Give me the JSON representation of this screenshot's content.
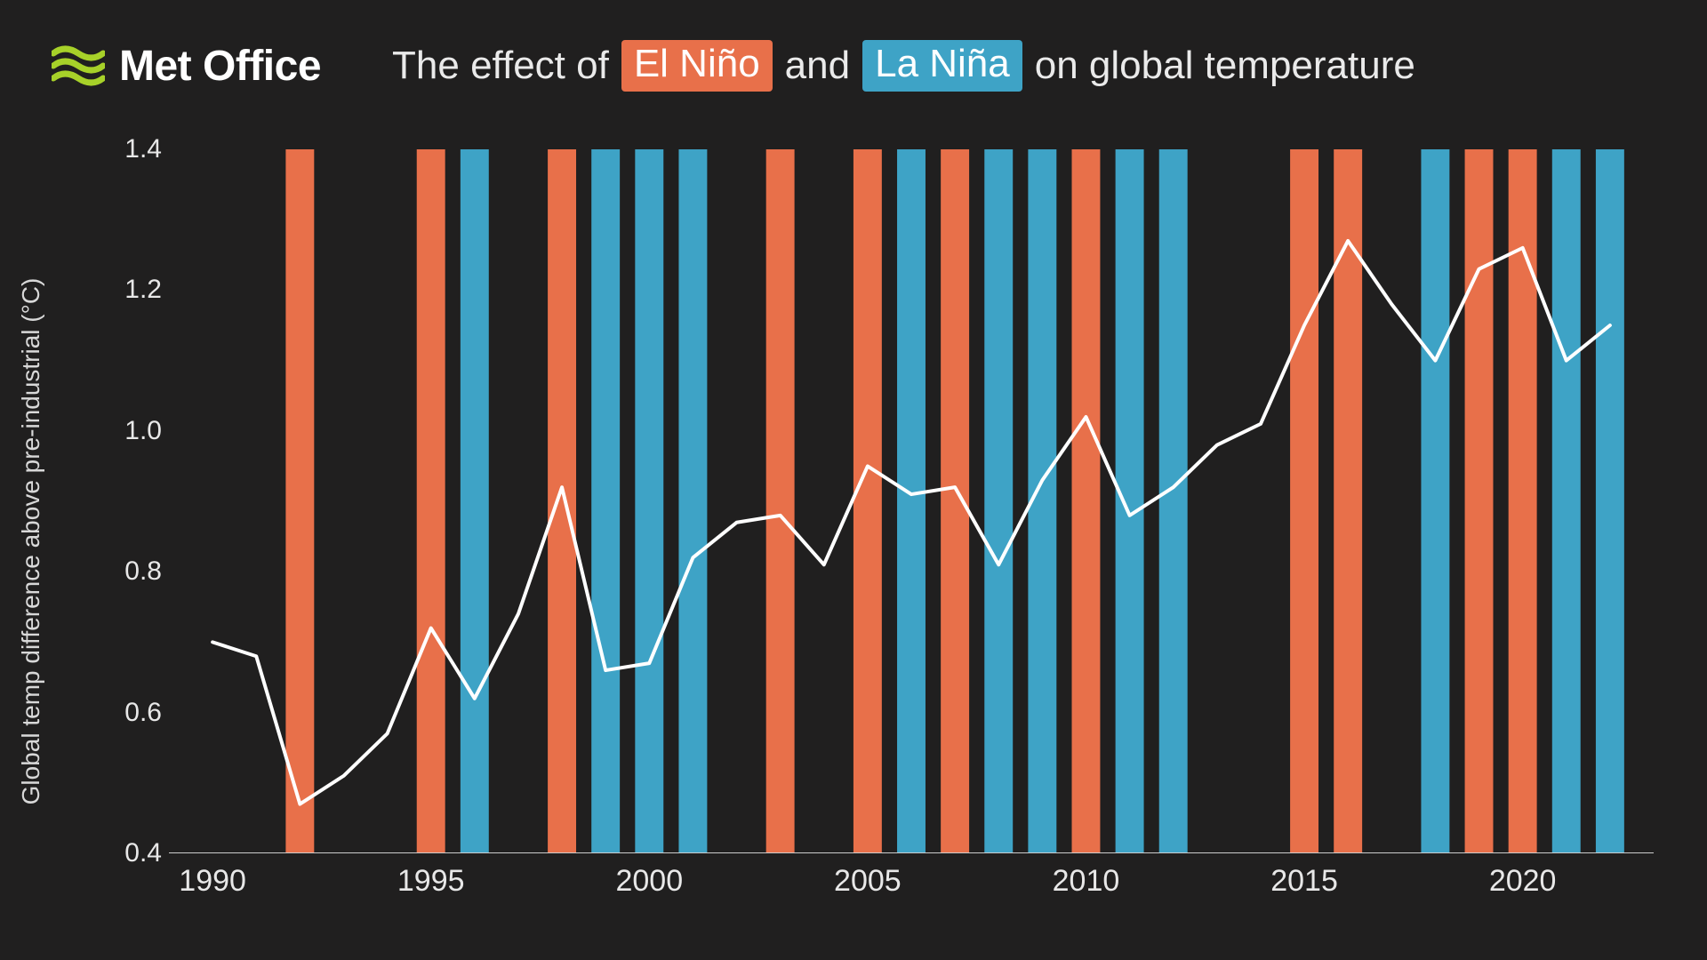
{
  "brand": {
    "logo_text": "Met Office",
    "logo_wave_color": "#a7d129"
  },
  "title": {
    "prefix": "The effect of",
    "elnino_label": "El Niño",
    "mid": "and",
    "lanina_label": "La Niña",
    "suffix": "on global temperature"
  },
  "colors": {
    "background": "#201f1f",
    "elnino": "#e8704a",
    "lanina": "#3ea3c6",
    "line": "#ffffff",
    "axis": "#cccccc",
    "text": "#e8e8e8"
  },
  "chart": {
    "type": "line+bar",
    "x_domain": [
      1989,
      2023
    ],
    "y_domain": [
      0.4,
      1.4
    ],
    "y_label": "Global temp difference above pre-industrial (°C)",
    "y_ticks": [
      0.4,
      0.6,
      0.8,
      1.0,
      1.2,
      1.4
    ],
    "x_ticks": [
      1990,
      1995,
      2000,
      2005,
      2010,
      2015,
      2020
    ],
    "line_width": 4,
    "bar_width_ratio": 0.65,
    "tick_fontsize": 30,
    "label_fontsize": 28,
    "bars": [
      {
        "year": 1992,
        "type": "elnino"
      },
      {
        "year": 1995,
        "type": "elnino"
      },
      {
        "year": 1996,
        "type": "lanina"
      },
      {
        "year": 1998,
        "type": "elnino"
      },
      {
        "year": 1999,
        "type": "lanina"
      },
      {
        "year": 2000,
        "type": "lanina"
      },
      {
        "year": 2001,
        "type": "lanina"
      },
      {
        "year": 2003,
        "type": "elnino"
      },
      {
        "year": 2005,
        "type": "elnino"
      },
      {
        "year": 2006,
        "type": "lanina"
      },
      {
        "year": 2007,
        "type": "elnino"
      },
      {
        "year": 2008,
        "type": "lanina"
      },
      {
        "year": 2009,
        "type": "lanina"
      },
      {
        "year": 2010,
        "type": "elnino"
      },
      {
        "year": 2011,
        "type": "lanina"
      },
      {
        "year": 2012,
        "type": "lanina"
      },
      {
        "year": 2015,
        "type": "elnino"
      },
      {
        "year": 2016,
        "type": "elnino"
      },
      {
        "year": 2018,
        "type": "lanina"
      },
      {
        "year": 2019,
        "type": "elnino"
      },
      {
        "year": 2020,
        "type": "elnino"
      },
      {
        "year": 2021,
        "type": "lanina"
      },
      {
        "year": 2022,
        "type": "lanina"
      }
    ],
    "line_series": [
      {
        "year": 1990,
        "value": 0.7
      },
      {
        "year": 1991,
        "value": 0.68
      },
      {
        "year": 1992,
        "value": 0.47
      },
      {
        "year": 1993,
        "value": 0.51
      },
      {
        "year": 1994,
        "value": 0.57
      },
      {
        "year": 1995,
        "value": 0.72
      },
      {
        "year": 1996,
        "value": 0.62
      },
      {
        "year": 1997,
        "value": 0.74
      },
      {
        "year": 1998,
        "value": 0.92
      },
      {
        "year": 1999,
        "value": 0.66
      },
      {
        "year": 2000,
        "value": 0.67
      },
      {
        "year": 2001,
        "value": 0.82
      },
      {
        "year": 2002,
        "value": 0.87
      },
      {
        "year": 2003,
        "value": 0.88
      },
      {
        "year": 2004,
        "value": 0.81
      },
      {
        "year": 2005,
        "value": 0.95
      },
      {
        "year": 2006,
        "value": 0.91
      },
      {
        "year": 2007,
        "value": 0.92
      },
      {
        "year": 2008,
        "value": 0.81
      },
      {
        "year": 2009,
        "value": 0.93
      },
      {
        "year": 2010,
        "value": 1.02
      },
      {
        "year": 2011,
        "value": 0.88
      },
      {
        "year": 2012,
        "value": 0.92
      },
      {
        "year": 2013,
        "value": 0.98
      },
      {
        "year": 2014,
        "value": 1.01
      },
      {
        "year": 2015,
        "value": 1.15
      },
      {
        "year": 2016,
        "value": 1.27
      },
      {
        "year": 2017,
        "value": 1.18
      },
      {
        "year": 2018,
        "value": 1.1
      },
      {
        "year": 2019,
        "value": 1.23
      },
      {
        "year": 2020,
        "value": 1.26
      },
      {
        "year": 2021,
        "value": 1.1
      },
      {
        "year": 2022,
        "value": 1.15
      }
    ]
  }
}
